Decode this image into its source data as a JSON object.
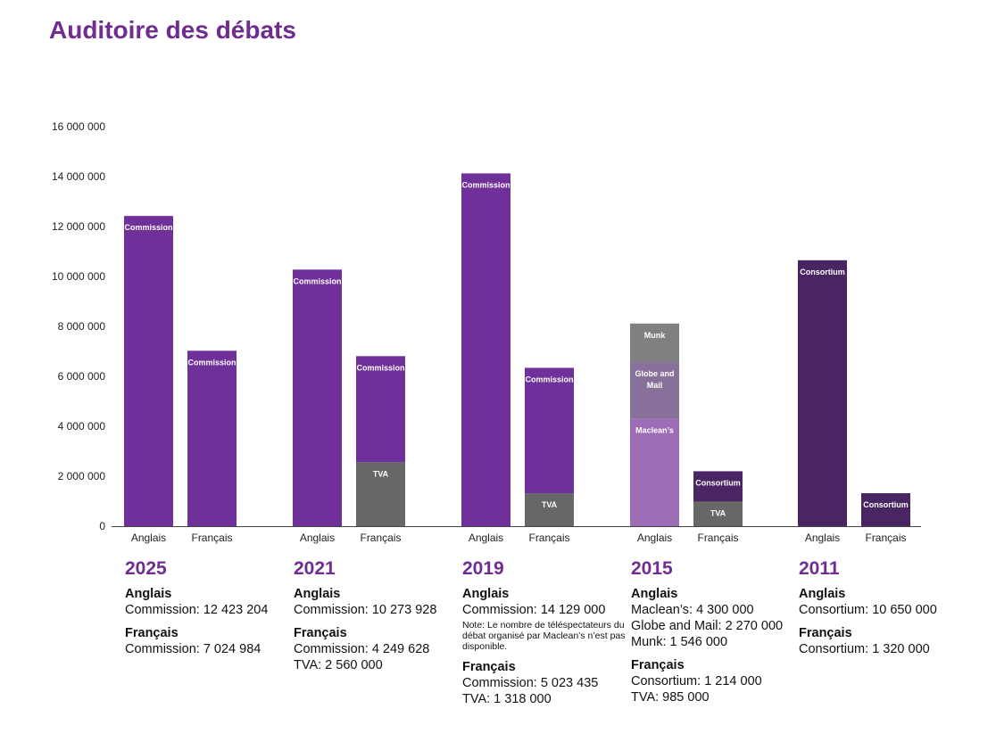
{
  "title": "Auditoire des débats",
  "colors": {
    "title": "#6f2c91"
  },
  "chart_data": {
    "type": "bar",
    "stacked": true,
    "title": "Auditoire des débats",
    "ylim": [
      0,
      16000000
    ],
    "yticks": [
      "0",
      "2 000 000",
      "4 000 000",
      "6 000 000",
      "8 000 000",
      "10 000 000",
      "12 000 000",
      "14 000 000",
      "16 000 000"
    ],
    "ytick_values": [
      0,
      2000000,
      4000000,
      6000000,
      8000000,
      10000000,
      12000000,
      14000000,
      16000000
    ],
    "grid": false,
    "groups": [
      {
        "year": "2025",
        "bars": [
          {
            "label": "Anglais",
            "segments": [
              {
                "name": "Commission",
                "value": 12423204,
                "color": "#70309a"
              }
            ]
          },
          {
            "label": "Français",
            "segments": [
              {
                "name": "Commission",
                "value": 7024984,
                "color": "#70309a"
              }
            ]
          }
        ]
      },
      {
        "year": "2021",
        "bars": [
          {
            "label": "Anglais",
            "segments": [
              {
                "name": "Commission",
                "value": 10273928,
                "color": "#70309a"
              }
            ]
          },
          {
            "label": "Français",
            "segments": [
              {
                "name": "TVA",
                "value": 2560000,
                "color": "#676767"
              },
              {
                "name": "Commission",
                "value": 4249628,
                "color": "#70309a"
              }
            ]
          }
        ]
      },
      {
        "year": "2019",
        "bars": [
          {
            "label": "Anglais",
            "segments": [
              {
                "name": "Commission",
                "value": 14129000,
                "color": "#70309a"
              }
            ]
          },
          {
            "label": "Français",
            "segments": [
              {
                "name": "TVA",
                "value": 1318000,
                "color": "#676767"
              },
              {
                "name": "Commission",
                "value": 5023435,
                "color": "#70309a"
              }
            ]
          }
        ]
      },
      {
        "year": "2015",
        "bars": [
          {
            "label": "Anglais",
            "segments": [
              {
                "name": "Maclean’s",
                "value": 4300000,
                "color": "#9e6db8"
              },
              {
                "name": "Globe and Mail",
                "value": 2270000,
                "color": "#87719a"
              },
              {
                "name": "Munk",
                "value": 1546000,
                "color": "#808080"
              }
            ]
          },
          {
            "label": "Français",
            "segments": [
              {
                "name": "TVA",
                "value": 985000,
                "color": "#676767"
              },
              {
                "name": "Consortium",
                "value": 1214000,
                "color": "#4a2563"
              }
            ]
          }
        ]
      },
      {
        "year": "2011",
        "bars": [
          {
            "label": "Anglais",
            "segments": [
              {
                "name": "Consortium",
                "value": 10650000,
                "color": "#4a2563"
              }
            ]
          },
          {
            "label": "Français",
            "segments": [
              {
                "name": "Consortium",
                "value": 1320000,
                "color": "#4a2563"
              }
            ]
          }
        ]
      }
    ]
  },
  "details": [
    {
      "year": "2025",
      "anglais_label": "Anglais",
      "anglais": [
        "Commission: 12 423 204"
      ],
      "note": "",
      "francais_label": "Français",
      "francais": [
        "Commission: 7 024 984"
      ]
    },
    {
      "year": "2021",
      "anglais_label": "Anglais",
      "anglais": [
        "Commission: 10 273 928"
      ],
      "note": "",
      "francais_label": "Français",
      "francais": [
        "Commission: 4 249 628",
        "TVA: 2 560 000"
      ]
    },
    {
      "year": "2019",
      "anglais_label": "Anglais",
      "anglais": [
        "Commission: 14 129 000"
      ],
      "note": "Note: Le nombre de téléspectateurs du débat organisé par Maclean’s n’est pas disponible.",
      "francais_label": "Français",
      "francais": [
        "Commission: 5 023 435",
        "TVA: 1 318 000"
      ]
    },
    {
      "year": "2015",
      "anglais_label": "Anglais",
      "anglais": [
        "Maclean’s: 4 300 000",
        "Globe and Mail: 2 270 000",
        "Munk: 1 546 000"
      ],
      "note": "",
      "francais_label": "Français",
      "francais": [
        "Consortium: 1 214 000",
        "TVA: 985 000"
      ]
    },
    {
      "year": "2011",
      "anglais_label": "Anglais",
      "anglais": [
        "Consortium: 10 650 000"
      ],
      "note": "",
      "francais_label": "Français",
      "francais": [
        "Consortium: 1 320 000"
      ]
    }
  ]
}
